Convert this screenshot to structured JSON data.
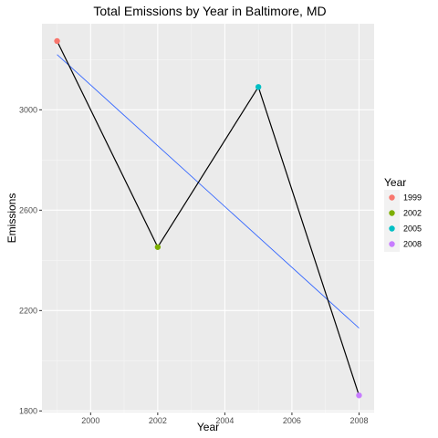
{
  "chart_data": {
    "type": "line",
    "title": "Total Emissions by Year in Baltimore, MD",
    "xlabel": "Year",
    "ylabel": "Emissions",
    "x": [
      1999,
      2002,
      2005,
      2008
    ],
    "values": [
      3274,
      2453,
      3091,
      1862
    ],
    "point_colors": [
      "#F8766D",
      "#7CAE00",
      "#00BFC4",
      "#C77CFF"
    ],
    "trend": {
      "x": [
        1999,
        2008
      ],
      "values": [
        3220,
        2130
      ],
      "color": "#3366FF"
    },
    "line_color": "#000000",
    "xlim": [
      1998.55,
      2008.45
    ],
    "ylim": [
      1794,
      3343
    ],
    "x_ticks": [
      2000,
      2002,
      2004,
      2006,
      2008
    ],
    "x_tick_labels": [
      "2000",
      "2002",
      "2004",
      "2006",
      "2008"
    ],
    "y_ticks": [
      1800,
      2200,
      2600,
      3000
    ],
    "y_tick_labels": [
      "1800",
      "2200",
      "2600",
      "3000"
    ],
    "grid": true,
    "panel_background": "#EBEBEB",
    "legend": {
      "title": "Year",
      "placement": "right",
      "labels": [
        "1999",
        "2002",
        "2005",
        "2008"
      ]
    }
  }
}
